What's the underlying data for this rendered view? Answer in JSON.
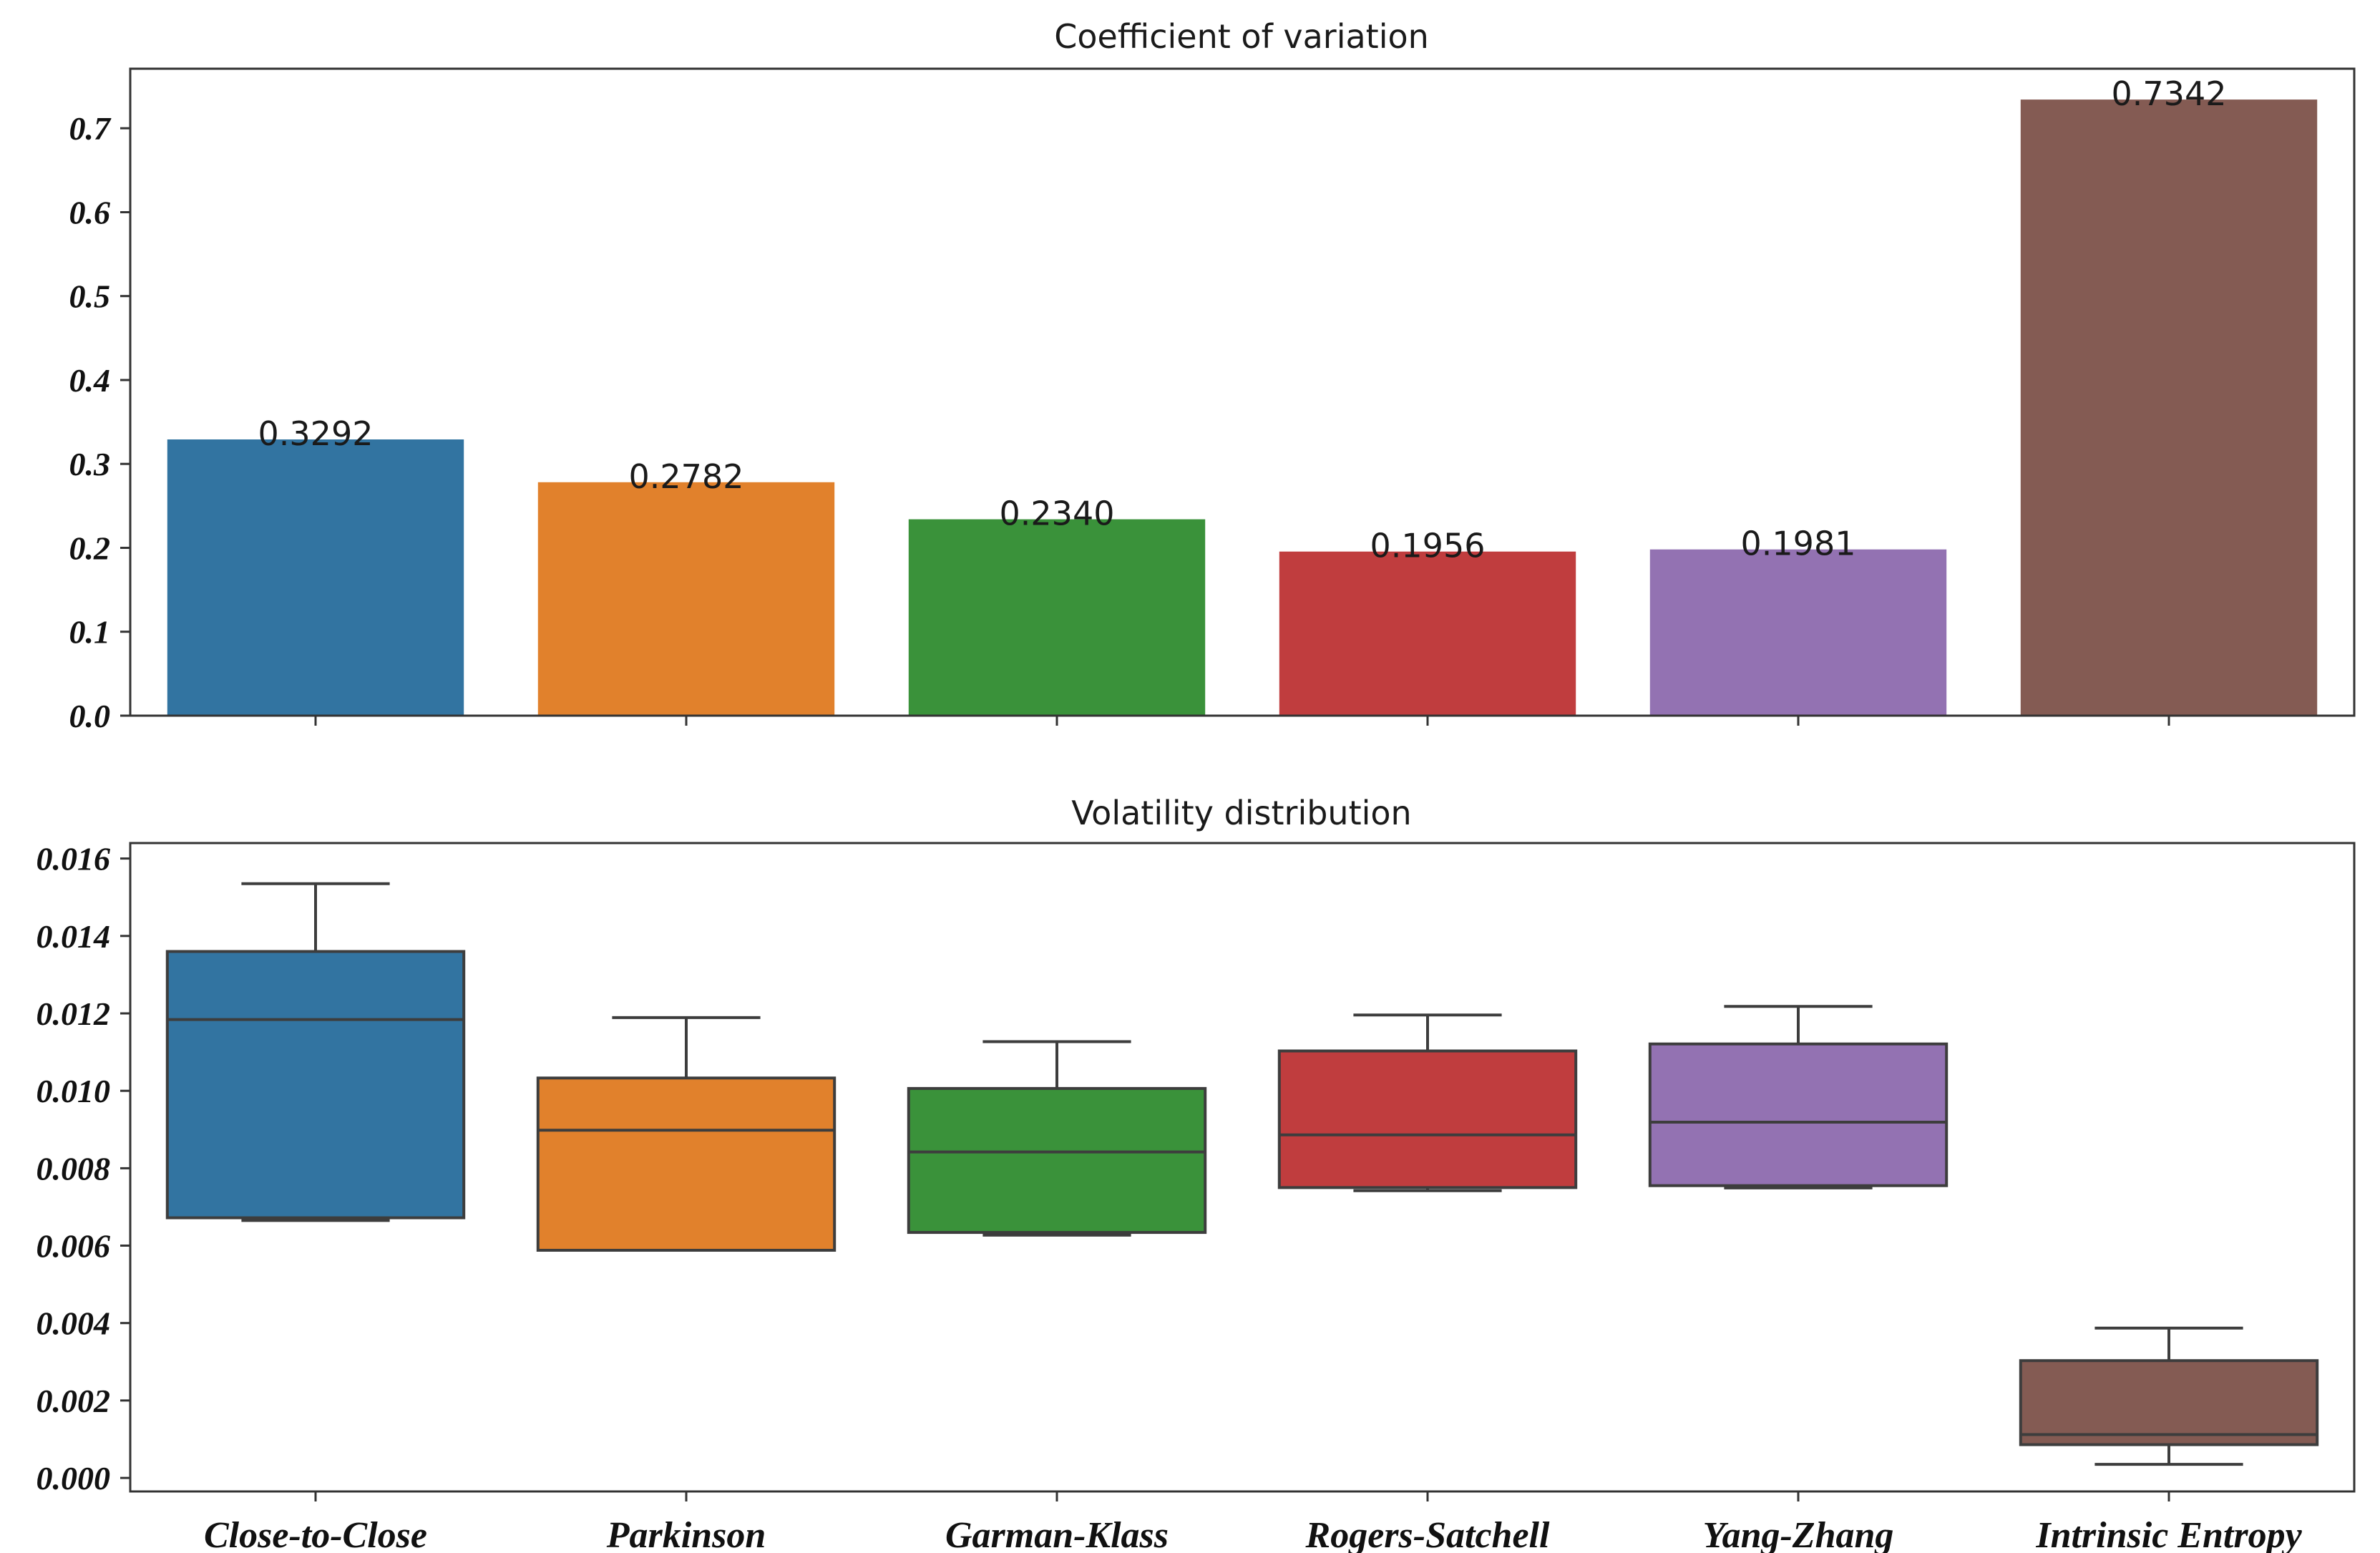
{
  "chart_data": [
    {
      "type": "bar",
      "title": "Coefficient of variation",
      "categories": [
        "Close-to-Close",
        "Parkinson",
        "Garman-Klass",
        "Rogers-Satchell",
        "Yang-Zhang",
        "Intrinsic Entropy"
      ],
      "values": [
        0.3292,
        0.2782,
        0.234,
        0.1956,
        0.1981,
        0.7342
      ],
      "value_labels": [
        "0.3292",
        "0.2782",
        "0.2340",
        "0.1956",
        "0.1981",
        "0.7342"
      ],
      "colors": [
        "#3274a1",
        "#e1812c",
        "#3a923a",
        "#c03d3e",
        "#9372b2",
        "#845b53"
      ],
      "yticks": [
        "0.0",
        "0.1",
        "0.2",
        "0.3",
        "0.4",
        "0.5",
        "0.6",
        "0.7"
      ],
      "ytick_values": [
        0.0,
        0.1,
        0.2,
        0.3,
        0.4,
        0.5,
        0.6,
        0.7
      ],
      "ylim": [
        0.0,
        0.771
      ],
      "xlabel": "",
      "ylabel": "",
      "grid": false
    },
    {
      "type": "box",
      "title": "Volatility distribution",
      "categories": [
        "Close-to-Close",
        "Parkinson",
        "Garman-Klass",
        "Rogers-Satchell",
        "Yang-Zhang",
        "Intrinsic Entropy"
      ],
      "boxes": [
        {
          "whisker_low": 0.00665,
          "q1": 0.00672,
          "median": 0.01184,
          "q3": 0.0136,
          "whisker_high": 0.01535
        },
        {
          "whisker_low": 0.00588,
          "q1": 0.00588,
          "median": 0.00898,
          "q3": 0.01033,
          "whisker_high": 0.01189
        },
        {
          "whisker_low": 0.00627,
          "q1": 0.00634,
          "median": 0.00842,
          "q3": 0.01006,
          "whisker_high": 0.01127
        },
        {
          "whisker_low": 0.00742,
          "q1": 0.0075,
          "median": 0.00886,
          "q3": 0.01103,
          "whisker_high": 0.01196
        },
        {
          "whisker_low": 0.00749,
          "q1": 0.00755,
          "median": 0.00919,
          "q3": 0.01121,
          "whisker_high": 0.01218
        },
        {
          "whisker_low": 0.00035,
          "q1": 0.00086,
          "median": 0.00112,
          "q3": 0.00303,
          "whisker_high": 0.00387
        }
      ],
      "colors": [
        "#3274a1",
        "#e1812c",
        "#3a923a",
        "#c03d3e",
        "#9372b2",
        "#845b53"
      ],
      "yticks": [
        "0.000",
        "0.002",
        "0.004",
        "0.006",
        "0.008",
        "0.010",
        "0.012",
        "0.014",
        "0.016"
      ],
      "ytick_values": [
        0.0,
        0.002,
        0.004,
        0.006,
        0.008,
        0.01,
        0.012,
        0.014,
        0.016
      ],
      "ylim": [
        -0.00035,
        0.0164
      ],
      "xlabel": "",
      "ylabel": "",
      "grid": false
    }
  ]
}
